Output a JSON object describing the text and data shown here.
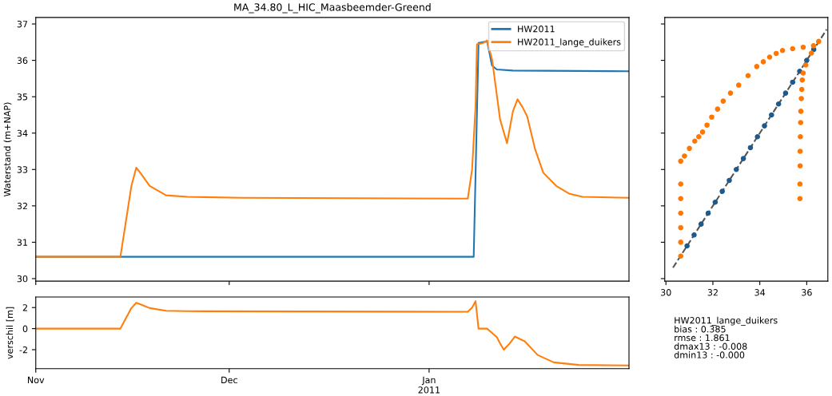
{
  "chart_data": [
    {
      "type": "line",
      "title": "MA_34.80_L_HIC_Maasbeemder-Greend",
      "ylabel": "Waterstand (m+NAP)",
      "xlim": [
        "2010-11-01",
        "2011-02-01"
      ],
      "xticks": [
        {
          "value": "2010-11-01",
          "label": null
        },
        {
          "value": "2010-12-01",
          "label": null
        },
        {
          "value": "2011-01-01",
          "label": null
        }
      ],
      "ylim": [
        29.93,
        37.18
      ],
      "yticks": [
        30,
        31,
        32,
        33,
        34,
        35,
        36,
        37
      ],
      "tick_labels": "y",
      "legend": "top right",
      "grid": false,
      "series": [
        {
          "name": "HW2011",
          "color": "#1f77b4",
          "x": [
            "2010-11-01",
            "2011-01-07T22:00",
            "2011-01-08T16:00",
            "2011-01-10T00:00",
            "2011-01-10T18:00",
            "2011-01-11T12:00",
            "2011-01-14",
            "2011-02-01"
          ],
          "values": [
            30.6,
            30.6,
            36.48,
            36.52,
            35.86,
            35.75,
            35.72,
            35.7
          ]
        },
        {
          "name": "HW2011_lange_duikers",
          "color": "#ff7f0e",
          "x": [
            "2010-11-01",
            "2010-11-14T03:00",
            "2010-11-15T20:00",
            "2010-11-16T14:00",
            "2010-11-17T06:00",
            "2010-11-18T16:00",
            "2010-11-21T05:00",
            "2010-11-24T12:00",
            "2010-12-03",
            "2011-01-07",
            "2011-01-07T16:00",
            "2011-01-08T05:00",
            "2011-01-08T10:00",
            "2011-01-09T10:00",
            "2011-01-10T00:00",
            "2011-01-10T19:00",
            "2011-01-12T00:00",
            "2011-01-13T02:00",
            "2011-01-14T00:00",
            "2011-01-14T17:00",
            "2011-01-15T12:00",
            "2011-01-16T05:00",
            "2011-01-17T10:00",
            "2011-01-18T17:00",
            "2011-01-20T17:00",
            "2011-01-22T19:00",
            "2011-01-24T19:00",
            "2011-02-01"
          ],
          "values": [
            30.6,
            30.6,
            32.55,
            33.05,
            32.9,
            32.55,
            32.29,
            32.25,
            32.22,
            32.2,
            33.0,
            34.75,
            36.44,
            36.48,
            36.55,
            36.0,
            34.38,
            33.72,
            34.6,
            34.93,
            34.71,
            34.46,
            33.57,
            32.91,
            32.55,
            32.33,
            32.25,
            32.22
          ]
        }
      ]
    },
    {
      "type": "line",
      "ylabel": "verschil [m]",
      "xlim": [
        "2010-11-01",
        "2011-02-01"
      ],
      "xticks": [
        {
          "value": "2010-11-01",
          "label": "Nov"
        },
        {
          "value": "2010-12-01",
          "label": "Dec"
        },
        {
          "value": "2011-01-01",
          "label": "Jan\n2011"
        }
      ],
      "ylim": [
        -3.8,
        3.0
      ],
      "yticks": [
        -2,
        0,
        2
      ],
      "grid": false,
      "series": [
        {
          "color": "#ff7f0e",
          "x": [
            "2010-11-01",
            "2010-11-14T03:00",
            "2010-11-15T20:00",
            "2010-11-16T14:00",
            "2010-11-17T06:00",
            "2010-11-18T16:00",
            "2010-11-21T05:00",
            "2010-11-24T12:00",
            "2011-01-07",
            "2011-01-07T16:00",
            "2011-01-08T05:00",
            "2011-01-08T16:00",
            "2011-01-10T00:00",
            "2011-01-11T12:00",
            "2011-01-12T00:00",
            "2011-01-12T14:00",
            "2011-01-13T12:00",
            "2011-01-14T07:00",
            "2011-01-15T20:00",
            "2011-01-17T20:00",
            "2011-01-20T08:00",
            "2011-01-24T05:00",
            "2011-02-01"
          ],
          "values": [
            0,
            0,
            1.95,
            2.45,
            2.3,
            1.95,
            1.69,
            1.65,
            1.6,
            2.0,
            2.6,
            0,
            0,
            -0.8,
            -1.4,
            -2.0,
            -1.4,
            -0.75,
            -1.2,
            -2.5,
            -3.2,
            -3.45,
            -3.5
          ]
        }
      ]
    },
    {
      "type": "scatter",
      "xlim": [
        29.95,
        36.9
      ],
      "xticks": [
        30,
        32,
        34,
        36
      ],
      "ylim": [
        29.93,
        37.18
      ],
      "yticks": [
        30,
        31,
        32,
        33,
        34,
        35,
        36,
        37
      ],
      "tick_labels": "x",
      "marker": "circle",
      "grid": false,
      "annotations": [
        "HW2011_lange_duikers\nbias : 0.385\nrmse : 1.861\ndmax13 : -0.008\ndmin13 : -0.000"
      ],
      "series": [
        {
          "type": "line",
          "marker": "none",
          "color": "#555555",
          "line_style": "dashed",
          "x": [
            30.3,
            36.85
          ],
          "values": [
            30.3,
            36.85
          ]
        },
        {
          "color": "#1f5a8c",
          "x": [
            30.9,
            31.2,
            31.5,
            31.8,
            32.1,
            32.4,
            32.7,
            33.0,
            33.3,
            33.6,
            33.9,
            34.2,
            34.5,
            34.8,
            35.1,
            35.4,
            35.7,
            36.0,
            36.3
          ],
          "values": [
            30.9,
            31.2,
            31.5,
            31.8,
            32.1,
            32.4,
            32.7,
            33.0,
            33.3,
            33.6,
            33.9,
            34.2,
            34.5,
            34.8,
            35.1,
            35.4,
            35.7,
            36.0,
            36.3
          ]
        },
        {
          "color": "#ff7700",
          "x": [
            30.63,
            30.63,
            30.63,
            30.63,
            30.63,
            30.63,
            30.63,
            30.79,
            31.0,
            31.23,
            31.4,
            31.56,
            31.75,
            31.95,
            32.2,
            32.44,
            32.75,
            33.1,
            33.5,
            33.87,
            34.15,
            34.42,
            34.7,
            34.97,
            35.4,
            35.85,
            36.29,
            36.51,
            36.2,
            35.96,
            35.85,
            35.81,
            35.79,
            35.77,
            35.75,
            35.74,
            35.73,
            35.72,
            35.72,
            35.71,
            35.71
          ],
          "values": [
            30.62,
            31.0,
            31.4,
            31.8,
            32.2,
            32.6,
            33.23,
            33.37,
            33.58,
            33.78,
            33.9,
            34.03,
            34.22,
            34.44,
            34.66,
            34.88,
            35.1,
            35.32,
            35.58,
            35.83,
            35.96,
            36.09,
            36.19,
            36.27,
            36.32,
            36.36,
            36.4,
            36.52,
            36.2,
            35.87,
            35.65,
            35.46,
            35.2,
            34.95,
            34.6,
            34.29,
            33.9,
            33.5,
            33.1,
            32.6,
            32.2
          ]
        }
      ]
    }
  ]
}
